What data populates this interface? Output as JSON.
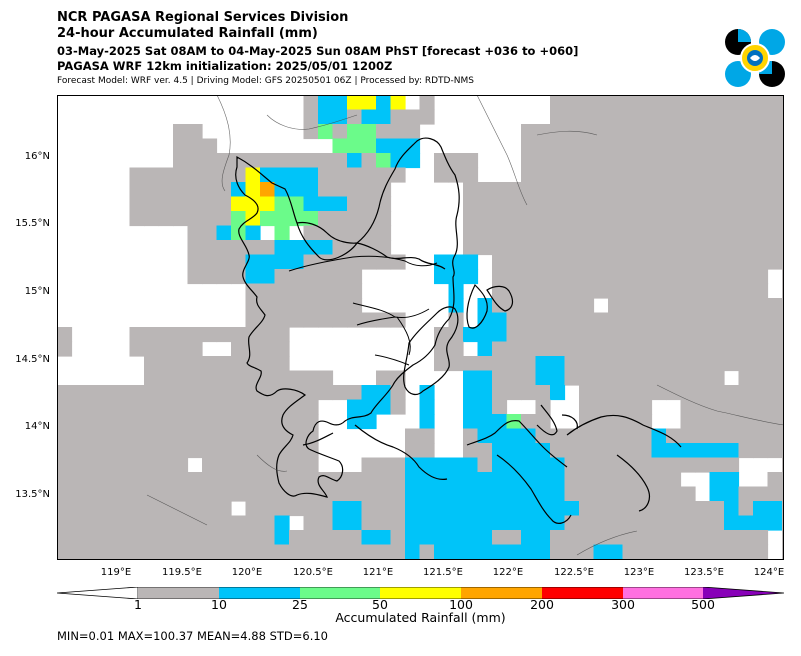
{
  "header": {
    "title": "NCR PAGASA Regional Services Division",
    "subtitle": "24-hour Accumulated Rainfall (mm)",
    "period": "03-May-2025 Sat 08AM to 04-May-2025 Sun 08AM PhST [forecast +036 to +060]",
    "init": "PAGASA WRF 12km initialization: 2025/05/01 1200Z",
    "model_info": "Forecast Model: WRF ver. 4.5 | Driving Model: GFS 20250501 06Z | Processed by: RDTD-NMS"
  },
  "map": {
    "lon_labels": [
      "119°E",
      "119.5°E",
      "120°E",
      "120.5°E",
      "121°E",
      "121.5°E",
      "122°E",
      "122.5°E",
      "123°E",
      "123.5°E",
      "124°E"
    ],
    "lat_labels": [
      "16°N",
      "15.5°N",
      "15°N",
      "14.5°N",
      "14°N",
      "13.5°N"
    ],
    "extent": {
      "lon_min": 118.8,
      "lon_max": 124.05,
      "lat_min": 13.0,
      "lat_max": 16.45
    },
    "rain_categories": [
      {
        "range": "<1",
        "color": "#ffffff"
      },
      {
        "range": "1-10",
        "color": "#bab6b6"
      },
      {
        "range": "10-25",
        "color": "#00c4f9"
      },
      {
        "range": "25-50",
        "color": "#6bfb8a"
      },
      {
        "range": "50-100",
        "color": "#ffff00"
      },
      {
        "range": "100-200",
        "color": "#ffa500"
      }
    ]
  },
  "colorbar": {
    "title": "Accumulated Rainfall (mm)",
    "ticks": [
      "1",
      "10",
      "25",
      "50",
      "100",
      "200",
      "300",
      "500"
    ],
    "colors": [
      "#bab6b6",
      "#00c4f9",
      "#6bfb8a",
      "#ffff00",
      "#ffa500",
      "#ff0000",
      "#ff6fe0",
      "#8800b8"
    ]
  },
  "stats": "MIN=0.01   MAX=100.37   MEAN=4.88   STD=6.10"
}
